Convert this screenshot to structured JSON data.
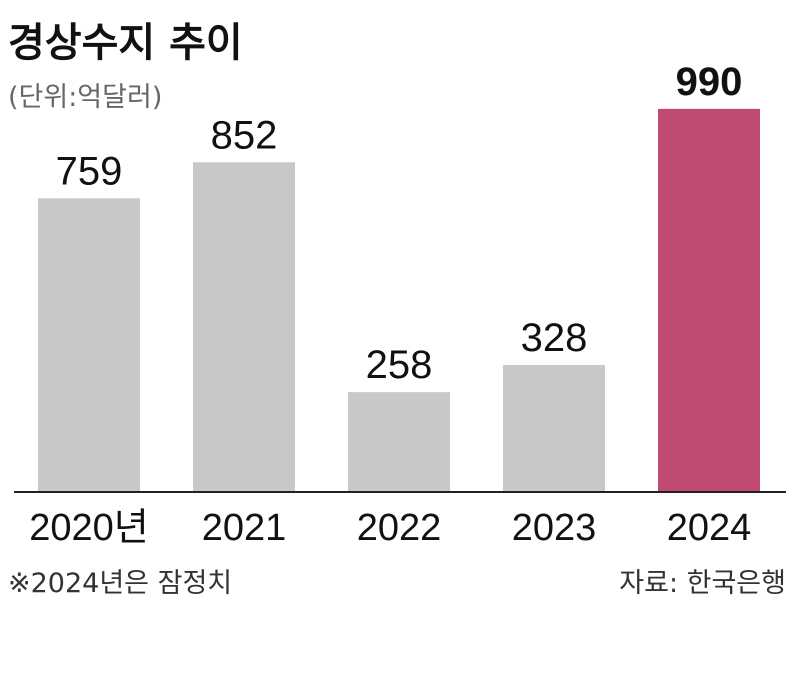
{
  "chart_data": {
    "type": "bar",
    "title": "경상수지 추이",
    "unit": "(단위:억달러)",
    "categories": [
      "2020년",
      "2021",
      "2022",
      "2023",
      "2024"
    ],
    "values": [
      759,
      852,
      258,
      328,
      990
    ],
    "ylim": [
      0,
      1000
    ],
    "grid": false,
    "highlight_index": 4,
    "colors": {
      "bar": "#c8c8c8",
      "highlight_bar": "#c04a73",
      "baseline": "#222222"
    },
    "note": "※2024년은 잠정치",
    "source": "자료: 한국은행"
  }
}
